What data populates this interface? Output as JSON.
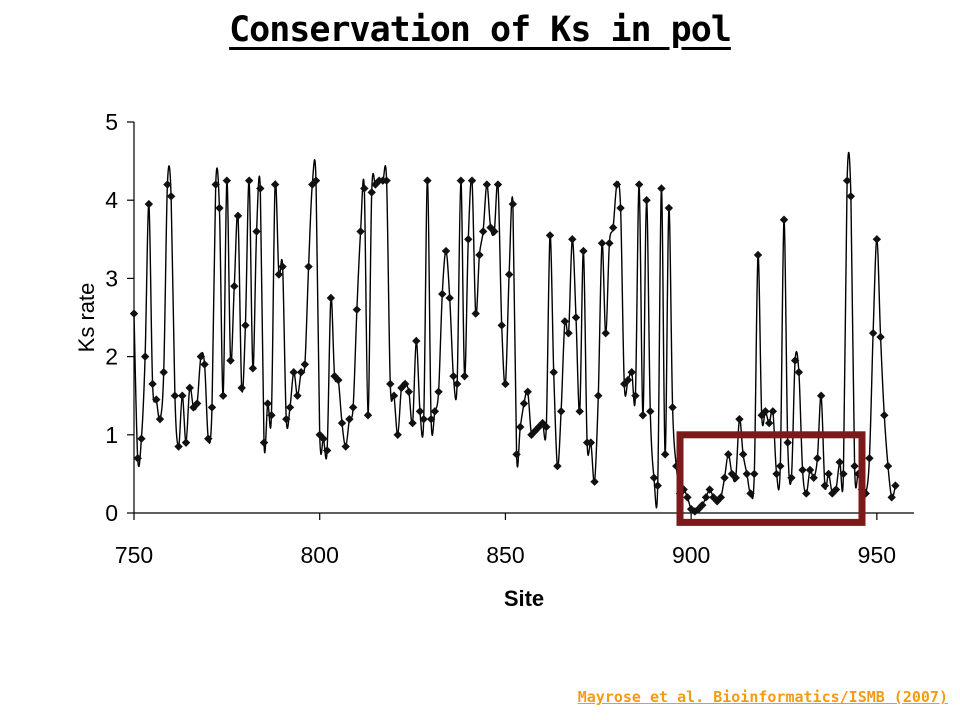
{
  "slide": {
    "title": "Conservation of Ks in pol",
    "citation": "Mayrose et al. Bioinformatics/ISMB (2007)"
  },
  "colors": {
    "line": "#000000",
    "marker": "#111111",
    "highlight": "#7a1a1a",
    "citation": "#f39c12"
  },
  "chart_data": {
    "type": "line",
    "xlabel": "Site",
    "ylabel": "Ks rate",
    "xlim": [
      750,
      960
    ],
    "ylim": [
      0,
      5
    ],
    "x_ticks": [
      750,
      800,
      850,
      900,
      950
    ],
    "y_ticks": [
      0,
      1,
      2,
      3,
      4,
      5
    ],
    "grid": false,
    "legend": "none",
    "marker": "diamond",
    "series": [
      {
        "x_start": 750,
        "values": [
          2.55,
          0.7,
          0.95,
          2.0,
          3.95,
          1.65,
          1.45,
          1.2,
          1.8,
          4.2,
          4.05,
          1.5,
          0.85,
          1.5,
          0.9,
          1.6,
          1.35,
          1.4,
          2.0,
          1.9,
          0.95,
          1.35,
          4.2,
          3.9,
          1.5,
          4.25,
          1.95,
          2.9,
          3.8,
          1.6,
          2.4,
          4.25,
          1.85,
          3.6,
          4.15,
          0.9,
          1.4,
          1.25,
          4.2,
          3.05,
          3.15,
          1.2,
          1.35,
          1.8,
          1.5,
          1.8,
          1.9,
          3.15,
          4.2,
          4.25,
          1.0,
          0.95,
          0.8,
          2.75,
          1.75,
          1.7,
          1.15,
          0.85,
          1.2,
          1.35,
          2.6,
          3.6,
          4.15,
          1.25,
          4.1,
          4.2,
          4.25,
          4.25,
          4.25,
          1.65,
          1.5,
          1.0,
          1.6,
          1.65,
          1.55,
          1.15,
          2.2,
          1.3,
          1.2,
          4.25,
          1.2,
          1.3,
          1.55,
          2.8,
          3.35,
          2.75,
          1.75,
          1.65,
          4.25,
          1.75,
          3.5,
          4.25,
          2.55,
          3.3,
          3.6,
          4.2,
          3.65,
          3.6,
          4.2,
          2.4,
          1.65,
          3.05,
          3.95,
          0.75,
          1.1,
          1.4,
          1.55,
          1.0,
          1.05,
          1.1,
          1.15,
          1.1,
          3.55,
          1.8,
          0.6,
          1.3,
          2.45,
          2.3,
          3.5,
          2.5,
          1.3,
          3.35,
          0.9,
          0.9,
          0.4,
          1.5,
          3.45,
          2.3,
          3.45,
          3.65,
          4.2,
          3.9,
          1.65,
          1.7,
          1.8,
          1.5,
          4.2,
          1.25,
          4.0,
          1.3,
          0.45,
          0.35,
          4.15,
          0.75,
          3.9,
          1.35,
          0.6,
          0.25,
          0.3,
          0.2,
          0.05,
          0.02,
          0.05,
          0.1,
          0.2,
          0.3,
          0.2,
          0.15,
          0.2,
          0.45,
          0.75,
          0.5,
          0.45,
          1.2,
          0.75,
          0.5,
          0.25,
          0.5,
          3.3,
          1.25,
          1.3,
          1.15,
          1.3,
          0.5,
          0.6,
          3.75,
          0.9,
          0.45,
          1.95,
          1.8,
          0.55,
          0.25,
          0.55,
          0.45,
          0.7,
          1.5,
          0.35,
          0.5,
          0.25,
          0.3,
          0.65,
          0.5,
          4.25,
          4.05,
          0.6,
          0.5,
          0.3,
          0.25,
          0.7,
          2.3,
          3.5,
          2.25,
          1.25,
          0.6,
          0.2,
          0.35
        ]
      }
    ],
    "highlight_box": {
      "x_from": 897,
      "x_to": 946,
      "y_from": -0.12,
      "y_to": 1.0
    }
  }
}
